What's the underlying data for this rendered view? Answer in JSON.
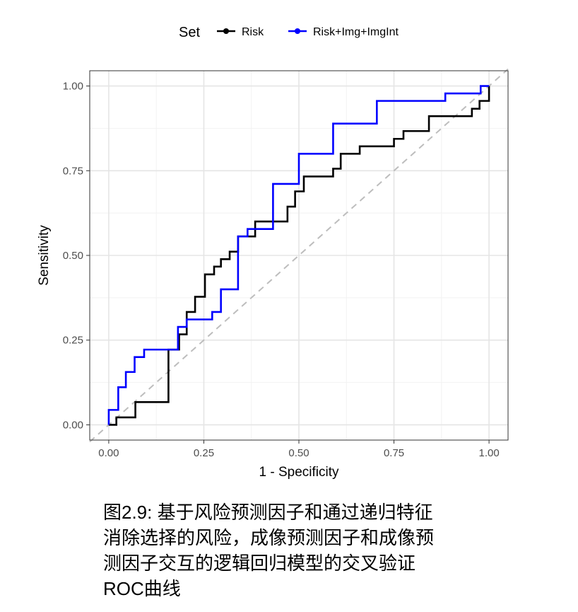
{
  "chart_data": {
    "type": "line",
    "xlabel": "1 - Specificity",
    "ylabel": "Sensitivity",
    "xlim": [
      -0.05,
      1.05
    ],
    "ylim": [
      -0.045,
      1.045
    ],
    "xticks": [
      "0.00",
      "0.25",
      "0.50",
      "0.75",
      "1.00"
    ],
    "yticks": [
      "0.00",
      "0.25",
      "0.50",
      "0.75",
      "1.00"
    ],
    "grid": true,
    "legend_position": "top",
    "legend_title": "Set",
    "diagonal_reference": true,
    "series": [
      {
        "name": "Risk",
        "color": "#000000",
        "points": [
          [
            0.0,
            0.0
          ],
          [
            0.02,
            0.0
          ],
          [
            0.02,
            0.022
          ],
          [
            0.07,
            0.022
          ],
          [
            0.07,
            0.067
          ],
          [
            0.157,
            0.067
          ],
          [
            0.157,
            0.222
          ],
          [
            0.185,
            0.222
          ],
          [
            0.185,
            0.267
          ],
          [
            0.205,
            0.267
          ],
          [
            0.205,
            0.333
          ],
          [
            0.227,
            0.333
          ],
          [
            0.227,
            0.378
          ],
          [
            0.253,
            0.378
          ],
          [
            0.253,
            0.444
          ],
          [
            0.277,
            0.444
          ],
          [
            0.277,
            0.467
          ],
          [
            0.295,
            0.467
          ],
          [
            0.295,
            0.489
          ],
          [
            0.318,
            0.489
          ],
          [
            0.318,
            0.511
          ],
          [
            0.34,
            0.511
          ],
          [
            0.34,
            0.556
          ],
          [
            0.385,
            0.556
          ],
          [
            0.385,
            0.6
          ],
          [
            0.47,
            0.6
          ],
          [
            0.47,
            0.644
          ],
          [
            0.49,
            0.644
          ],
          [
            0.49,
            0.689
          ],
          [
            0.513,
            0.689
          ],
          [
            0.513,
            0.733
          ],
          [
            0.59,
            0.733
          ],
          [
            0.59,
            0.756
          ],
          [
            0.61,
            0.756
          ],
          [
            0.61,
            0.8
          ],
          [
            0.66,
            0.8
          ],
          [
            0.66,
            0.822
          ],
          [
            0.75,
            0.822
          ],
          [
            0.75,
            0.844
          ],
          [
            0.775,
            0.844
          ],
          [
            0.775,
            0.867
          ],
          [
            0.842,
            0.867
          ],
          [
            0.842,
            0.911
          ],
          [
            0.955,
            0.911
          ],
          [
            0.955,
            0.933
          ],
          [
            0.975,
            0.933
          ],
          [
            0.975,
            0.956
          ],
          [
            1.0,
            0.956
          ],
          [
            1.0,
            1.0
          ]
        ]
      },
      {
        "name": "Risk+Img+ImgInt",
        "color": "#0000ff",
        "points": [
          [
            0.0,
            0.0
          ],
          [
            0.0,
            0.044
          ],
          [
            0.025,
            0.044
          ],
          [
            0.025,
            0.111
          ],
          [
            0.045,
            0.111
          ],
          [
            0.045,
            0.156
          ],
          [
            0.068,
            0.156
          ],
          [
            0.068,
            0.2
          ],
          [
            0.093,
            0.2
          ],
          [
            0.093,
            0.222
          ],
          [
            0.182,
            0.222
          ],
          [
            0.182,
            0.289
          ],
          [
            0.205,
            0.289
          ],
          [
            0.205,
            0.311
          ],
          [
            0.272,
            0.311
          ],
          [
            0.272,
            0.333
          ],
          [
            0.295,
            0.333
          ],
          [
            0.295,
            0.4
          ],
          [
            0.34,
            0.4
          ],
          [
            0.34,
            0.556
          ],
          [
            0.365,
            0.556
          ],
          [
            0.365,
            0.578
          ],
          [
            0.432,
            0.578
          ],
          [
            0.432,
            0.711
          ],
          [
            0.5,
            0.711
          ],
          [
            0.5,
            0.8
          ],
          [
            0.59,
            0.8
          ],
          [
            0.59,
            0.889
          ],
          [
            0.705,
            0.889
          ],
          [
            0.705,
            0.956
          ],
          [
            0.885,
            0.956
          ],
          [
            0.885,
            0.978
          ],
          [
            0.978,
            0.978
          ],
          [
            0.978,
            1.0
          ],
          [
            1.0,
            1.0
          ]
        ]
      }
    ]
  },
  "caption": {
    "line1": "图2.9: 基于风险预测因子和通过递归特征",
    "line2": "消除选择的风险，成像预测因子和成像预",
    "line3": "测因子交互的逻辑回归模型的交叉验证",
    "line4": "ROC曲线"
  }
}
